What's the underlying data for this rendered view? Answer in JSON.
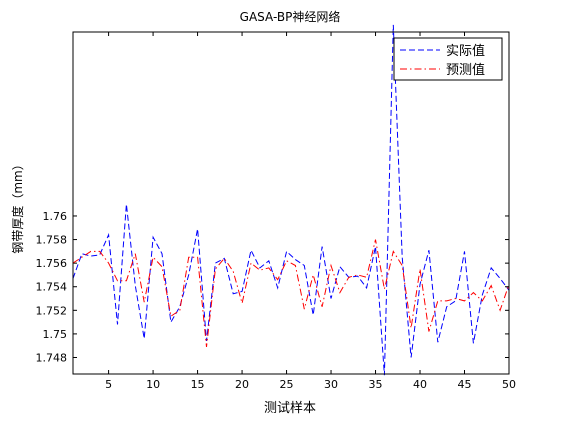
{
  "chart_data": {
    "type": "line",
    "title": "GASA-BP神经网络",
    "xlabel": "测试样本",
    "ylabel": "钢带厚度（mm）",
    "xlim": [
      1,
      50
    ],
    "ylim": [
      1.7466,
      1.7756
    ],
    "xticks": [
      5,
      10,
      15,
      20,
      25,
      30,
      35,
      40,
      45,
      50
    ],
    "yticks": [
      1.748,
      1.75,
      1.752,
      1.754,
      1.756,
      1.758,
      1.76
    ],
    "ytick_labels": [
      "1.748",
      "1.75",
      "1.752",
      "1.754",
      "1.756",
      "1.758",
      "1.76"
    ],
    "legend_position": "top-right",
    "x": [
      1,
      2,
      3,
      4,
      5,
      6,
      7,
      8,
      9,
      10,
      11,
      12,
      13,
      14,
      15,
      16,
      17,
      18,
      19,
      20,
      21,
      22,
      23,
      24,
      25,
      26,
      27,
      28,
      29,
      30,
      31,
      32,
      33,
      34,
      35,
      36,
      37,
      38,
      39,
      40,
      41,
      42,
      43,
      44,
      45,
      46,
      47,
      48,
      49,
      50
    ],
    "series": [
      {
        "name": "实际值",
        "color": "#0000ff",
        "dash": "dashed",
        "values": [
          1.7547,
          1.7568,
          1.7566,
          1.7567,
          1.7584,
          1.7508,
          1.761,
          1.7541,
          1.7496,
          1.7582,
          1.7568,
          1.751,
          1.7523,
          1.755,
          1.7589,
          1.7494,
          1.756,
          1.7564,
          1.7534,
          1.7536,
          1.7571,
          1.7556,
          1.7562,
          1.7539,
          1.757,
          1.7563,
          1.7558,
          1.7516,
          1.7574,
          1.753,
          1.7557,
          1.7548,
          1.7549,
          1.7539,
          1.7574,
          1.7465,
          1.7762,
          1.7565,
          1.748,
          1.7542,
          1.7571,
          1.7493,
          1.7523,
          1.7528,
          1.757,
          1.7492,
          1.7533,
          1.7556,
          1.7547,
          1.7537
        ]
      },
      {
        "name": "预测值",
        "color": "#ff0000",
        "dash": "dash-dot",
        "values": [
          1.756,
          1.7565,
          1.757,
          1.757,
          1.756,
          1.7545,
          1.7545,
          1.7568,
          1.7527,
          1.7565,
          1.7557,
          1.7515,
          1.752,
          1.7565,
          1.7565,
          1.7489,
          1.7555,
          1.7564,
          1.7553,
          1.7526,
          1.756,
          1.7554,
          1.7556,
          1.7546,
          1.7562,
          1.7558,
          1.7521,
          1.755,
          1.7523,
          1.7558,
          1.7535,
          1.7548,
          1.755,
          1.7548,
          1.758,
          1.7538,
          1.757,
          1.7558,
          1.7505,
          1.7555,
          1.7502,
          1.7528,
          1.7528,
          1.753,
          1.7528,
          1.7535,
          1.7528,
          1.7541,
          1.752,
          1.7542
        ]
      }
    ]
  }
}
